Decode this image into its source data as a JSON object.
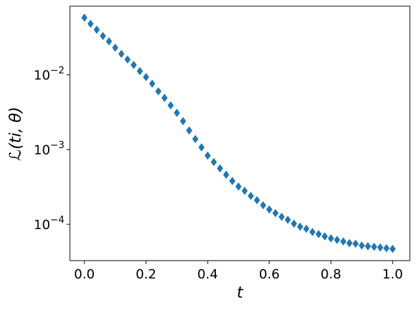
{
  "chart_data": {
    "type": "scatter",
    "x_label": "t",
    "y_label": "ℒ(ti, θ)",
    "color": "#1f77b4",
    "marker": "diamond",
    "y_log": true,
    "xlim": [
      -0.047,
      1.056
    ],
    "ylim": [
      3.27e-05,
      0.0826
    ],
    "xticks": [
      {
        "value": 0,
        "label": "0.0"
      },
      {
        "value": 0.2,
        "label": "0.2"
      },
      {
        "value": 0.4,
        "label": "0.4"
      },
      {
        "value": 0.6,
        "label": "0.6"
      },
      {
        "value": 0.8,
        "label": "0.8"
      },
      {
        "value": 1,
        "label": "1.0"
      }
    ],
    "yticks": [
      {
        "value": 0.0001,
        "label": "10−4"
      },
      {
        "value": 0.001,
        "label": "10−3"
      },
      {
        "value": 0.01,
        "label": "10−2"
      }
    ],
    "x": [
      0,
      0.02,
      0.04,
      0.06,
      0.08,
      0.1,
      0.12,
      0.14,
      0.16,
      0.18,
      0.2,
      0.22,
      0.24,
      0.26,
      0.28,
      0.3,
      0.32,
      0.34,
      0.36,
      0.38,
      0.4,
      0.42,
      0.44,
      0.46,
      0.48,
      0.5,
      0.52,
      0.54,
      0.56,
      0.58,
      0.6,
      0.62,
      0.64,
      0.66,
      0.68,
      0.7,
      0.72,
      0.74,
      0.76,
      0.78,
      0.8,
      0.82,
      0.84,
      0.86,
      0.88,
      0.9,
      0.92,
      0.94,
      0.96,
      0.98,
      1
    ],
    "values": [
      0.058,
      0.048,
      0.04,
      0.033,
      0.028,
      0.023,
      0.019,
      0.016,
      0.0135,
      0.0112,
      0.0093,
      0.0076,
      0.006,
      0.0049,
      0.0039,
      0.0031,
      0.0024,
      0.0018,
      0.00138,
      0.00107,
      0.00083,
      0.00068,
      0.00056,
      0.00046,
      0.00038,
      0.00032,
      0.00028,
      0.00024,
      0.00021,
      0.00018,
      0.000158,
      0.000141,
      0.000126,
      0.000115,
      0.000102,
      9.3e-05,
      8.7e-05,
      7.9e-05,
      7.4e-05,
      6.9e-05,
      6.5e-05,
      6.2e-05,
      5.9e-05,
      5.6e-05,
      5.5e-05,
      5.2e-05,
      5.1e-05,
      5e-05,
      4.9e-05,
      4.8e-05,
      4.7e-05
    ]
  }
}
